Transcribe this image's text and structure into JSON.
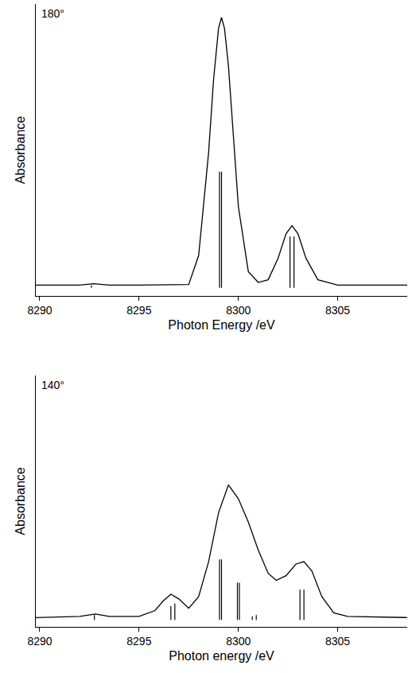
{
  "chart_data": [
    {
      "type": "line",
      "title": "180°",
      "x_label": "Photon Energy /eV",
      "y_label": "Absorbance",
      "xlim": [
        8289.8,
        8308.5
      ],
      "xticks": [
        8290,
        8295,
        8300,
        8305
      ],
      "ylim": [
        -0.03,
        1.05
      ],
      "tick_labels": "x",
      "grid": false,
      "series": [
        {
          "type": "line",
          "color": "#000000",
          "x": [
            8289.8,
            8292,
            8292.7,
            8293.5,
            8295,
            8296.5,
            8297,
            8297.5,
            8298,
            8298.5,
            8298.75,
            8299,
            8299.15,
            8299.3,
            8299.5,
            8299.75,
            8300,
            8300.5,
            8301,
            8301.5,
            8302,
            8302.4,
            8302.7,
            8303,
            8303.4,
            8304,
            8305,
            8308.5
          ],
          "values": [
            0.01,
            0.01,
            0.015,
            0.01,
            0.01,
            0.01,
            0.01,
            0.012,
            0.12,
            0.5,
            0.77,
            0.96,
            1.0,
            0.96,
            0.82,
            0.55,
            0.3,
            0.06,
            0.02,
            0.03,
            0.11,
            0.2,
            0.23,
            0.2,
            0.11,
            0.03,
            0.01,
            0.01
          ]
        },
        {
          "type": "stick",
          "color": "#000000",
          "x": [
            8292.6,
            8299.05,
            8299.15,
            8302.6,
            8302.8
          ],
          "values": [
            0.01,
            0.43,
            0.43,
            0.19,
            0.19
          ]
        }
      ]
    },
    {
      "type": "line",
      "title": "140°",
      "x_label": "Photon energy /eV",
      "y_label": "Absorbance",
      "xlim": [
        8289.8,
        8308.5
      ],
      "xticks": [
        8290,
        8295,
        8300,
        8305
      ],
      "ylim": [
        -0.03,
        1.05
      ],
      "tick_labels": "x",
      "grid": false,
      "series": [
        {
          "type": "line",
          "color": "#000000",
          "x": [
            8289.8,
            8292,
            8292.8,
            8293.5,
            8295,
            8295.8,
            8296.2,
            8296.6,
            8297,
            8297.5,
            8298,
            8298.5,
            8299,
            8299.5,
            8300,
            8300.5,
            8301,
            8301.5,
            8301.9,
            8302.4,
            8302.9,
            8303.3,
            8303.7,
            8304.2,
            8304.8,
            8305.5,
            8308.5
          ],
          "values": [
            0.01,
            0.015,
            0.025,
            0.015,
            0.015,
            0.04,
            0.08,
            0.11,
            0.09,
            0.05,
            0.1,
            0.25,
            0.46,
            0.58,
            0.52,
            0.42,
            0.3,
            0.2,
            0.17,
            0.19,
            0.24,
            0.25,
            0.21,
            0.1,
            0.03,
            0.015,
            0.01
          ]
        },
        {
          "type": "stick",
          "color": "#000000",
          "x": [
            8292.75,
            8296.6,
            8296.8,
            8299.05,
            8299.15,
            8299.95,
            8300.05,
            8300.7,
            8300.9,
            8303.1,
            8303.3
          ],
          "values": [
            0.02,
            0.06,
            0.07,
            0.26,
            0.26,
            0.16,
            0.16,
            0.015,
            0.02,
            0.13,
            0.13
          ]
        }
      ]
    }
  ]
}
